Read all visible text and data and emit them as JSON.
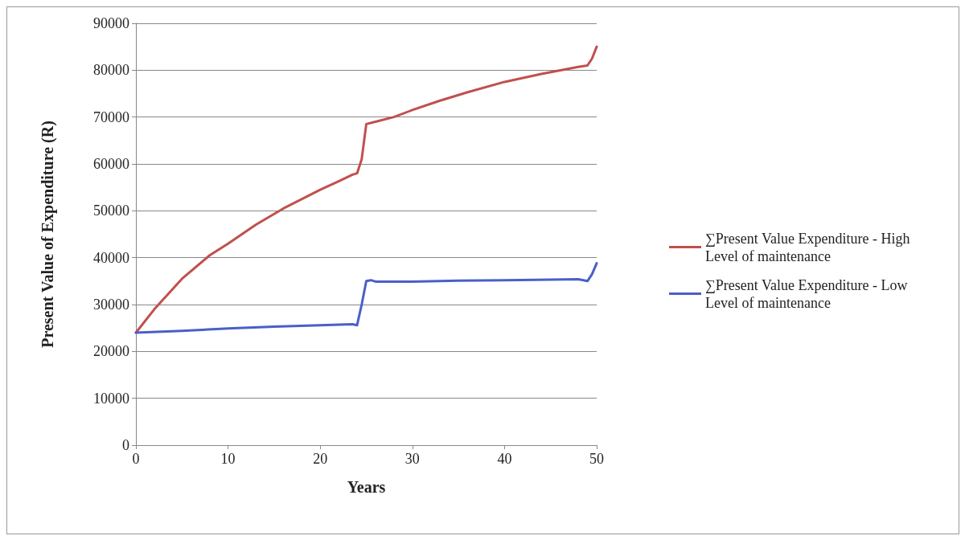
{
  "chart_data": {
    "type": "line",
    "xlabel": "Years",
    "ylabel": "Present Value of Expenditure (R)",
    "xlim": [
      0,
      50
    ],
    "xticks": [
      0,
      10,
      20,
      30,
      40,
      50
    ],
    "ylim": [
      0,
      90000
    ],
    "yticks": [
      0,
      10000,
      20000,
      30000,
      40000,
      50000,
      60000,
      70000,
      80000,
      90000
    ],
    "grid": "y",
    "legend": "right",
    "marker": "none",
    "line_style": "solid",
    "series": [
      {
        "name": "∑Present Value Expenditure - High Level of maintenance",
        "color": "#c0504d",
        "x": [
          0,
          2,
          5,
          8,
          10,
          13,
          16,
          20,
          22,
          23.5,
          24,
          24.5,
          25,
          26,
          28,
          30,
          33,
          36,
          40,
          44,
          48,
          49,
          49.5,
          50
        ],
        "values": [
          24000,
          29000,
          35500,
          40500,
          43000,
          47000,
          50500,
          54500,
          56300,
          57700,
          58000,
          61000,
          68500,
          69000,
          70000,
          71500,
          73500,
          75300,
          77500,
          79200,
          80700,
          81000,
          82500,
          85000
        ]
      },
      {
        "name": "∑Present Value Expenditure - Low Level of maintenance",
        "color": "#4a5fc8",
        "x": [
          0,
          5,
          10,
          15,
          20,
          23.5,
          24,
          24.5,
          25,
          25.5,
          26,
          30,
          35,
          40,
          45,
          48,
          49,
          49.5,
          50
        ],
        "values": [
          24000,
          24400,
          24900,
          25300,
          25600,
          25800,
          25600,
          30000,
          35000,
          35200,
          34900,
          34900,
          35100,
          35200,
          35300,
          35400,
          35000,
          36500,
          38800
        ]
      }
    ]
  }
}
